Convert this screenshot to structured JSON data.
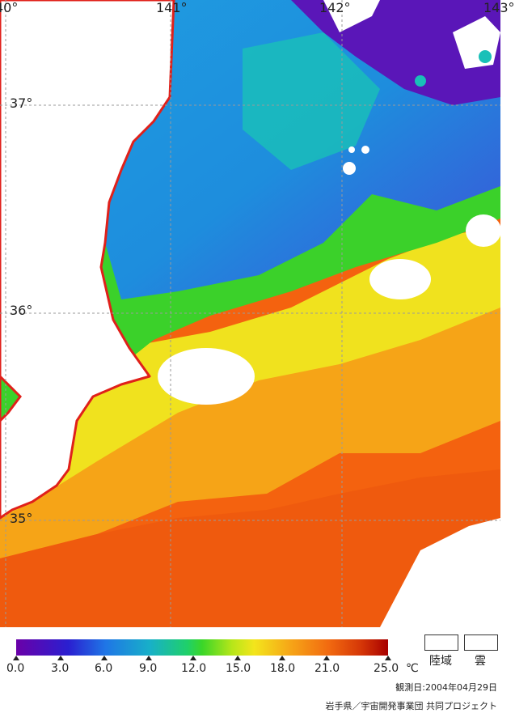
{
  "map": {
    "lon_labels": [
      "40°",
      "141°",
      "142°",
      "143°"
    ],
    "lat_labels": [
      "37°",
      "36°",
      "35°"
    ]
  },
  "colorbar": {
    "ticks": [
      "0.0",
      "3.0",
      "6.0",
      "9.0",
      "12.0",
      "15.0",
      "18.0",
      "21.0",
      "25.0"
    ],
    "unit": "℃"
  },
  "legend": {
    "land": "陸域",
    "cloud": "雲"
  },
  "footer": {
    "observation_date": "観測日:2004年04月29日",
    "credit": "岩手県／宇宙開発事業団  共同プロジェクト"
  },
  "colors": {
    "coastline": "#e0201a",
    "very_warm": "#f4620f",
    "warm": "#f49a16",
    "yellow": "#f0e21e",
    "green": "#3bd12a",
    "cyan": "#19b8c8",
    "blue": "#1f7be6",
    "violet": "#5a16b8"
  }
}
